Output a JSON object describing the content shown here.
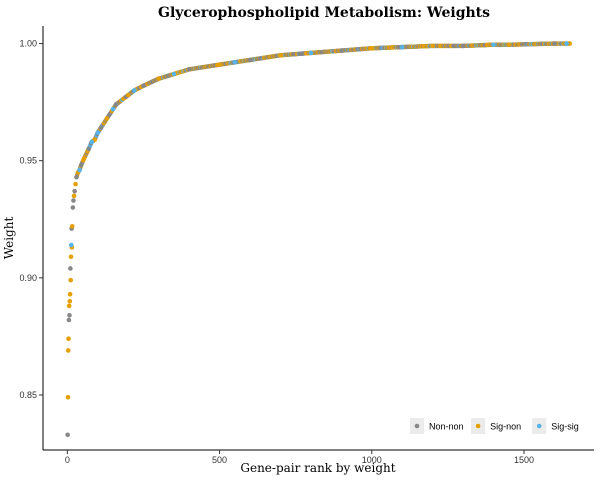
{
  "chart_data": {
    "type": "scatter",
    "title": "Glycerophospholipid Metabolism: Weights",
    "xlabel": "Gene-pair rank by weight",
    "ylabel": "Weight",
    "xlim": [
      -80,
      1730
    ],
    "ylim": [
      0.8265,
      1.0075
    ],
    "x_ticks": [
      0,
      500,
      1000,
      1500
    ],
    "y_ticks": [
      0.85,
      0.9,
      0.95,
      1.0
    ],
    "x_tick_labels": [
      "0",
      "500",
      "1000",
      "1500"
    ],
    "y_tick_labels": [
      "0.85",
      "0.90",
      "0.95",
      "1.00"
    ],
    "grid": false,
    "legend_position": "bottom-right",
    "n_points": 1650,
    "colors": {
      "Non-non": "#888888",
      "Sig-non": "#E69F00",
      "Sig-sig": "#56B4E9"
    },
    "series": [
      {
        "name": "Non-non",
        "color": "#888888",
        "x": [
          1,
          5,
          7,
          10,
          14,
          18,
          20,
          24,
          30,
          45,
          70,
          110,
          160,
          250,
          400,
          600,
          900,
          1300,
          1600
        ],
        "y": [
          0.833,
          0.882,
          0.884,
          0.904,
          0.921,
          0.93,
          0.933,
          0.937,
          0.943,
          0.948,
          0.955,
          0.964,
          0.974,
          0.982,
          0.989,
          0.993,
          0.997,
          0.999,
          1.0
        ]
      },
      {
        "name": "Sig-non",
        "color": "#E69F00",
        "x": [
          2,
          3,
          4,
          6,
          8,
          9,
          11,
          12,
          15,
          16,
          22,
          27,
          35,
          55,
          90,
          130,
          200,
          300,
          500,
          700,
          1000,
          1200,
          1450,
          1650
        ],
        "y": [
          0.849,
          0.869,
          0.874,
          0.888,
          0.89,
          0.893,
          0.899,
          0.909,
          0.913,
          0.922,
          0.935,
          0.94,
          0.945,
          0.951,
          0.959,
          0.968,
          0.978,
          0.985,
          0.991,
          0.995,
          0.998,
          0.999,
          0.9995,
          1.0
        ]
      },
      {
        "name": "Sig-sig",
        "color": "#56B4E9",
        "x": [
          13,
          40,
          80,
          100,
          150,
          220,
          350,
          550,
          800,
          1100,
          1400,
          1640
        ],
        "y": [
          0.914,
          0.946,
          0.958,
          0.962,
          0.972,
          0.98,
          0.987,
          0.992,
          0.996,
          0.9985,
          0.9995,
          1.0
        ]
      }
    ]
  }
}
